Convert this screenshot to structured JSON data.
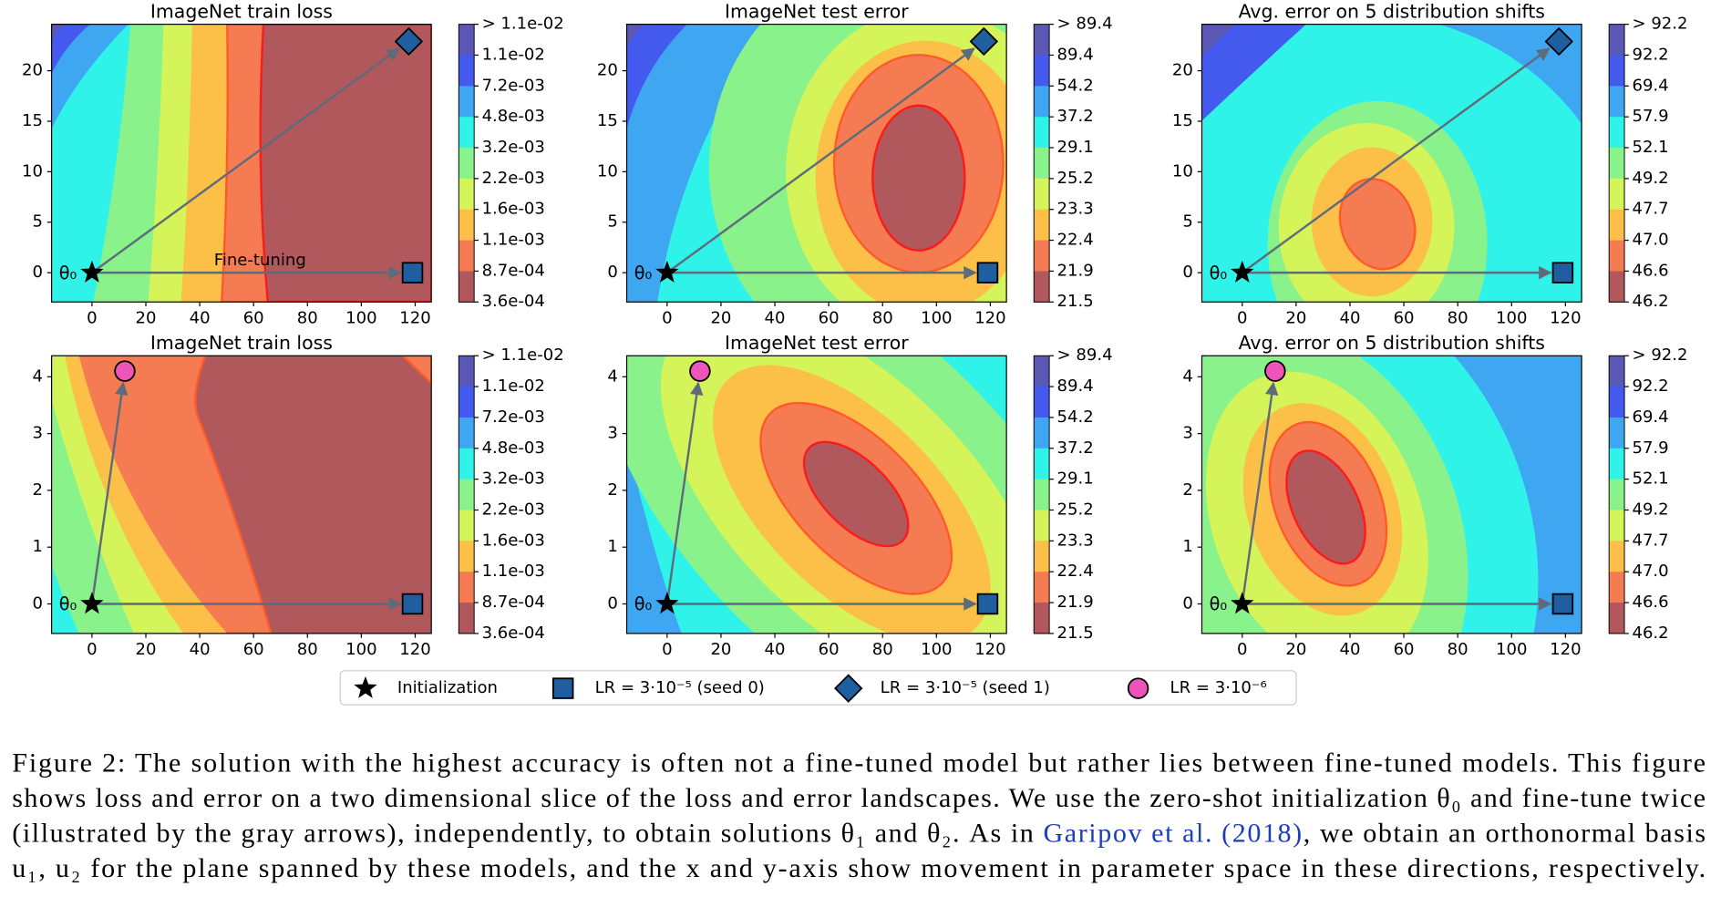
{
  "chart_data": [
    {
      "type": "contour",
      "title": "ImageNet train loss",
      "xlim": [
        -15,
        126
      ],
      "ylim": [
        -2.9,
        24.6
      ],
      "xticks": [
        0,
        20,
        40,
        60,
        80,
        100,
        120
      ],
      "yticks": [
        0,
        5,
        10,
        15,
        20
      ],
      "colorbar_labels": [
        "> 1.1e-02",
        "1.1e-02",
        "7.2e-03",
        "4.8e-03",
        "3.2e-03",
        "2.2e-03",
        "1.6e-03",
        "1.1e-03",
        "8.7e-04",
        "3.6e-04"
      ],
      "colors": [
        "#5b57b4",
        "#4459ee",
        "#3fa6f2",
        "#2ff3e8",
        "#8af28a",
        "#d4f45a",
        "#fcbf47",
        "#f57c52",
        "#b0585c"
      ],
      "start_label": "θ₀",
      "annotation": "Fine-tuning",
      "points": [
        {
          "marker": "star",
          "x": 0,
          "y": 0
        },
        {
          "marker": "square",
          "x": 119,
          "y": 0
        },
        {
          "marker": "diamond",
          "x": 117.6,
          "y": 22.9
        }
      ]
    },
    {
      "type": "contour",
      "title": "ImageNet test error",
      "xlim": [
        -15,
        126
      ],
      "ylim": [
        -2.9,
        24.6
      ],
      "xticks": [
        0,
        20,
        40,
        60,
        80,
        100,
        120
      ],
      "yticks": [
        0,
        5,
        10,
        15,
        20
      ],
      "colorbar_labels": [
        "> 89.4",
        "89.4",
        "54.2",
        "37.2",
        "29.1",
        "25.2",
        "23.3",
        "22.4",
        "21.9",
        "21.5"
      ],
      "colors": [
        "#5b57b4",
        "#4459ee",
        "#3fa6f2",
        "#2ff3e8",
        "#8af28a",
        "#d4f45a",
        "#fcbf47",
        "#f57c52",
        "#b0585c"
      ],
      "start_label": "θ₀",
      "points": [
        {
          "marker": "star",
          "x": 0,
          "y": 0
        },
        {
          "marker": "square",
          "x": 119,
          "y": 0
        },
        {
          "marker": "diamond",
          "x": 117.6,
          "y": 22.9
        }
      ]
    },
    {
      "type": "contour",
      "title": "Avg. error on 5 distribution shifts",
      "xlim": [
        -15,
        126
      ],
      "ylim": [
        -2.9,
        24.6
      ],
      "xticks": [
        0,
        20,
        40,
        60,
        80,
        100,
        120
      ],
      "yticks": [
        0,
        5,
        10,
        15,
        20
      ],
      "colorbar_labels": [
        "> 92.2",
        "92.2",
        "69.4",
        "57.9",
        "52.1",
        "49.2",
        "47.7",
        "47.0",
        "46.6",
        "46.2"
      ],
      "colors": [
        "#5b57b4",
        "#4459ee",
        "#3fa6f2",
        "#2ff3e8",
        "#8af28a",
        "#d4f45a",
        "#fcbf47",
        "#f57c52",
        "#b0585c"
      ],
      "start_label": "θ₀",
      "points": [
        {
          "marker": "star",
          "x": 0,
          "y": 0
        },
        {
          "marker": "square",
          "x": 119,
          "y": 0
        },
        {
          "marker": "diamond",
          "x": 117.6,
          "y": 22.9
        }
      ]
    },
    {
      "type": "contour",
      "title": "ImageNet train loss",
      "xlim": [
        -15,
        126
      ],
      "ylim": [
        -0.52,
        4.37
      ],
      "xticks": [
        0,
        20,
        40,
        60,
        80,
        100,
        120
      ],
      "yticks": [
        0,
        1,
        2,
        3,
        4
      ],
      "colorbar_labels": [
        "> 1.1e-02",
        "1.1e-02",
        "7.2e-03",
        "4.8e-03",
        "3.2e-03",
        "2.2e-03",
        "1.6e-03",
        "1.1e-03",
        "8.7e-04",
        "3.6e-04"
      ],
      "colors": [
        "#5b57b4",
        "#4459ee",
        "#3fa6f2",
        "#2ff3e8",
        "#8af28a",
        "#d4f45a",
        "#fcbf47",
        "#f57c52",
        "#b0585c"
      ],
      "start_label": "θ₀",
      "points": [
        {
          "marker": "star",
          "x": 0,
          "y": 0
        },
        {
          "marker": "square",
          "x": 119,
          "y": 0
        },
        {
          "marker": "circle",
          "x": 12.2,
          "y": 4.1
        }
      ]
    },
    {
      "type": "contour",
      "title": "ImageNet test error",
      "xlim": [
        -15,
        126
      ],
      "ylim": [
        -0.52,
        4.37
      ],
      "xticks": [
        0,
        20,
        40,
        60,
        80,
        100,
        120
      ],
      "yticks": [
        0,
        1,
        2,
        3,
        4
      ],
      "colorbar_labels": [
        "> 89.4",
        "89.4",
        "54.2",
        "37.2",
        "29.1",
        "25.2",
        "23.3",
        "22.4",
        "21.9",
        "21.5"
      ],
      "colors": [
        "#5b57b4",
        "#4459ee",
        "#3fa6f2",
        "#2ff3e8",
        "#8af28a",
        "#d4f45a",
        "#fcbf47",
        "#f57c52",
        "#b0585c"
      ],
      "start_label": "θ₀",
      "points": [
        {
          "marker": "star",
          "x": 0,
          "y": 0
        },
        {
          "marker": "square",
          "x": 119,
          "y": 0
        },
        {
          "marker": "circle",
          "x": 12.2,
          "y": 4.1
        }
      ]
    },
    {
      "type": "contour",
      "title": "Avg. error on 5 distribution shifts",
      "xlim": [
        -15,
        126
      ],
      "ylim": [
        -0.52,
        4.37
      ],
      "xticks": [
        0,
        20,
        40,
        60,
        80,
        100,
        120
      ],
      "yticks": [
        0,
        1,
        2,
        3,
        4
      ],
      "colorbar_labels": [
        "> 92.2",
        "92.2",
        "69.4",
        "57.9",
        "52.1",
        "49.2",
        "47.7",
        "47.0",
        "46.6",
        "46.2"
      ],
      "colors": [
        "#5b57b4",
        "#4459ee",
        "#3fa6f2",
        "#2ff3e8",
        "#8af28a",
        "#d4f45a",
        "#fcbf47",
        "#f57c52",
        "#b0585c"
      ],
      "start_label": "θ₀",
      "points": [
        {
          "marker": "star",
          "x": 0,
          "y": 0
        },
        {
          "marker": "square",
          "x": 119,
          "y": 0
        },
        {
          "marker": "circle",
          "x": 12.2,
          "y": 4.1
        }
      ]
    }
  ],
  "legend": [
    {
      "marker": "star",
      "name": "Initialization",
      "color": "#000000"
    },
    {
      "marker": "square",
      "name": "LR = 3·10⁻⁵ (seed 0)",
      "color": "#1f5fa0"
    },
    {
      "marker": "diamond",
      "name": "LR = 3·10⁻⁵ (seed 1)",
      "color": "#1f5fa0"
    },
    {
      "marker": "circle",
      "name": "LR = 3·10⁻⁶",
      "color": "#ee55bb"
    }
  ],
  "caption": {
    "lines": [
      [
        {
          "text": "Figure 2: The solution with the highest accuracy is often not a fine-tuned model but rather lies between fine-tuned models. This figure"
        }
      ],
      [
        {
          "text": "shows loss and error on a two dimensional slice of the loss and error landscapes. We use the zero-shot initialization θ₀ and fine-tune twice"
        }
      ],
      [
        {
          "text": "(illustrated by the gray arrows), independently, to obtain solutions θ₁ and θ₂. As in "
        },
        {
          "text": "Garipov et al. (2018)",
          "color": "#1a3fb8"
        },
        {
          "text": ", we obtain an orthonormal basis"
        }
      ],
      [
        {
          "text": "u₁, u₂ for the plane spanned by these models, and the x and y-axis show movement in parameter space in these directions, respectively."
        }
      ]
    ]
  }
}
